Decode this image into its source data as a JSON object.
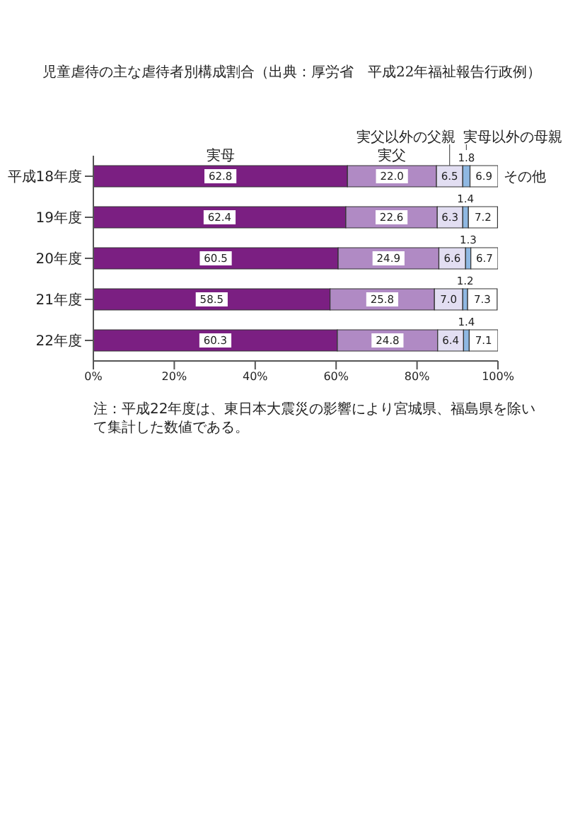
{
  "chart_data": {
    "type": "bar",
    "orientation": "horizontal",
    "stacked": true,
    "title": "児童虐待の主な虐待者別構成割合（出典：厚労省　平成22年福祉報告行政例）",
    "categories": [
      "平成18年度",
      "19年度",
      "20年度",
      "21年度",
      "22年度"
    ],
    "series": [
      {
        "name": "実母",
        "color": "#7b1f82",
        "values": [
          62.8,
          62.4,
          60.5,
          58.5,
          60.3
        ],
        "value_labels": [
          "62.8",
          "62.4",
          "60.5",
          "58.5",
          "60.3"
        ]
      },
      {
        "name": "実父",
        "color": "#b08ac4",
        "values": [
          22.0,
          22.6,
          24.9,
          25.8,
          24.8
        ],
        "value_labels": [
          "22.0",
          "22.6",
          "24.9",
          "25.8",
          "24.8"
        ]
      },
      {
        "name": "実父以外の父親",
        "color": "#e2def2",
        "values": [
          6.5,
          6.3,
          6.6,
          7.0,
          6.4
        ],
        "value_labels": [
          "6.5",
          "6.3",
          "6.6",
          "7.0",
          "6.4"
        ]
      },
      {
        "name": "実母以外の母親",
        "color": "#8fb8e2",
        "values": [
          1.8,
          1.4,
          1.3,
          1.2,
          1.4
        ],
        "value_labels": [
          "1.8",
          "1.4",
          "1.3",
          "1.2",
          "1.4"
        ]
      },
      {
        "name": "その他",
        "color": "#ffffff",
        "values": [
          6.9,
          7.2,
          6.7,
          7.3,
          7.1
        ],
        "value_labels": [
          "6.9",
          "7.2",
          "6.7",
          "7.3",
          "7.1"
        ]
      }
    ],
    "xlim": [
      0,
      100
    ],
    "xticks": [
      {
        "value": 0,
        "label": "0%"
      },
      {
        "value": 20,
        "label": "20%"
      },
      {
        "value": 40,
        "label": "40%"
      },
      {
        "value": 60,
        "label": "60%"
      },
      {
        "value": 80,
        "label": "80%"
      },
      {
        "value": 100,
        "label": "100%"
      }
    ],
    "annotations": [
      "注：平成22年度は、東日本大震災の影響により宮城県、福島県を除いて集計した数値である。"
    ]
  }
}
